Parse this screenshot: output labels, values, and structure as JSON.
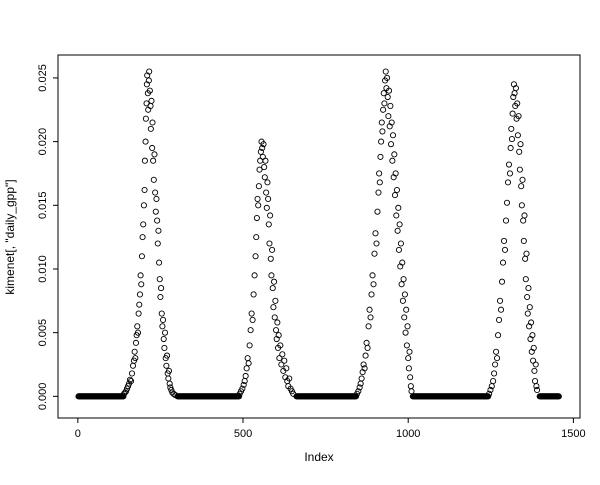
{
  "figure": {
    "background": "#ffffff"
  },
  "chart_data": {
    "type": "scatter",
    "title": "",
    "xlabel": "Index",
    "ylabel": "kimenet[, \"daily_gpp\"]",
    "marker": "open-circle",
    "color": "#000000",
    "grid": false,
    "legend": "none",
    "xlim": [
      0,
      1460
    ],
    "ylim": [
      0,
      0.0255
    ],
    "x_extended": [
      -60,
      1520
    ],
    "y_extended": [
      -0.0017,
      0.0268
    ],
    "x_ticks": [
      0,
      500,
      1000,
      1500
    ],
    "x_tick_labels": [
      "0",
      "500",
      "1000",
      "1500"
    ],
    "y_ticks": [
      0,
      0.005,
      0.01,
      0.015,
      0.02,
      0.025
    ],
    "y_tick_labels": [
      "0.000",
      "0.005",
      "0.010",
      "0.015",
      "0.020",
      "0.025"
    ],
    "zero_value": 0.0,
    "zero_step": 2,
    "zero_segments": [
      [
        2,
        138
      ],
      [
        302,
        488
      ],
      [
        662,
        842
      ],
      [
        1014,
        1242
      ],
      [
        1398,
        1456
      ]
    ],
    "points": [
      [
        140,
        0.0002
      ],
      [
        143,
        0.0003
      ],
      [
        146,
        0.0004
      ],
      [
        149,
        0.0006
      ],
      [
        152,
        0.0008
      ],
      [
        155,
        0.001
      ],
      [
        158,
        0.0013
      ],
      [
        161,
        0.0012
      ],
      [
        164,
        0.0018
      ],
      [
        167,
        0.0024
      ],
      [
        170,
        0.0028
      ],
      [
        172,
        0.0035
      ],
      [
        174,
        0.003
      ],
      [
        176,
        0.0042
      ],
      [
        178,
        0.0048
      ],
      [
        180,
        0.0055
      ],
      [
        182,
        0.005
      ],
      [
        184,
        0.0065
      ],
      [
        186,
        0.0072
      ],
      [
        188,
        0.008
      ],
      [
        190,
        0.0095
      ],
      [
        192,
        0.0088
      ],
      [
        194,
        0.011
      ],
      [
        196,
        0.0125
      ],
      [
        198,
        0.0135
      ],
      [
        200,
        0.015
      ],
      [
        202,
        0.0162
      ],
      [
        203,
        0.0185
      ],
      [
        205,
        0.02
      ],
      [
        206,
        0.0218
      ],
      [
        208,
        0.023
      ],
      [
        209,
        0.0245
      ],
      [
        210,
        0.0252
      ],
      [
        212,
        0.0238
      ],
      [
        213,
        0.0225
      ],
      [
        215,
        0.0248
      ],
      [
        216,
        0.0255
      ],
      [
        218,
        0.024
      ],
      [
        220,
        0.0228
      ],
      [
        221,
        0.021
      ],
      [
        223,
        0.0232
      ],
      [
        225,
        0.0195
      ],
      [
        226,
        0.0215
      ],
      [
        228,
        0.0185
      ],
      [
        230,
        0.017
      ],
      [
        232,
        0.019
      ],
      [
        234,
        0.016
      ],
      [
        236,
        0.0145
      ],
      [
        238,
        0.0155
      ],
      [
        240,
        0.0138
      ],
      [
        242,
        0.012
      ],
      [
        244,
        0.013
      ],
      [
        246,
        0.0105
      ],
      [
        248,
        0.0092
      ],
      [
        250,
        0.0078
      ],
      [
        252,
        0.0085
      ],
      [
        254,
        0.0065
      ],
      [
        256,
        0.0055
      ],
      [
        258,
        0.006
      ],
      [
        260,
        0.0045
      ],
      [
        262,
        0.0038
      ],
      [
        264,
        0.005
      ],
      [
        266,
        0.003
      ],
      [
        268,
        0.0024
      ],
      [
        270,
        0.0032
      ],
      [
        272,
        0.0018
      ],
      [
        274,
        0.0014
      ],
      [
        276,
        0.002
      ],
      [
        278,
        0.001
      ],
      [
        280,
        0.0007
      ],
      [
        283,
        0.0005
      ],
      [
        286,
        0.0003
      ],
      [
        290,
        0.0002
      ],
      [
        295,
        0.0001
      ],
      [
        490,
        0.0002
      ],
      [
        494,
        0.0004
      ],
      [
        498,
        0.0006
      ],
      [
        502,
        0.0009
      ],
      [
        505,
        0.0012
      ],
      [
        508,
        0.0016
      ],
      [
        511,
        0.0022
      ],
      [
        514,
        0.003
      ],
      [
        517,
        0.0026
      ],
      [
        520,
        0.004
      ],
      [
        523,
        0.0052
      ],
      [
        526,
        0.0065
      ],
      [
        529,
        0.006
      ],
      [
        532,
        0.008
      ],
      [
        535,
        0.0095
      ],
      [
        538,
        0.011
      ],
      [
        540,
        0.0125
      ],
      [
        542,
        0.014
      ],
      [
        544,
        0.0155
      ],
      [
        546,
        0.015
      ],
      [
        548,
        0.0165
      ],
      [
        550,
        0.0178
      ],
      [
        552,
        0.0185
      ],
      [
        554,
        0.0192
      ],
      [
        556,
        0.02
      ],
      [
        558,
        0.0195
      ],
      [
        560,
        0.0188
      ],
      [
        562,
        0.0198
      ],
      [
        564,
        0.018
      ],
      [
        566,
        0.0172
      ],
      [
        568,
        0.0185
      ],
      [
        570,
        0.016
      ],
      [
        572,
        0.0148
      ],
      [
        574,
        0.0168
      ],
      [
        576,
        0.0155
      ],
      [
        578,
        0.0135
      ],
      [
        580,
        0.012
      ],
      [
        582,
        0.0142
      ],
      [
        584,
        0.0108
      ],
      [
        586,
        0.0095
      ],
      [
        588,
        0.0115
      ],
      [
        590,
        0.0085
      ],
      [
        592,
        0.007
      ],
      [
        594,
        0.009
      ],
      [
        596,
        0.0062
      ],
      [
        598,
        0.0075
      ],
      [
        600,
        0.0052
      ],
      [
        602,
        0.0045
      ],
      [
        604,
        0.0058
      ],
      [
        606,
        0.0038
      ],
      [
        608,
        0.0048
      ],
      [
        610,
        0.003
      ],
      [
        613,
        0.004
      ],
      [
        616,
        0.0025
      ],
      [
        619,
        0.0033
      ],
      [
        622,
        0.002
      ],
      [
        625,
        0.0028
      ],
      [
        628,
        0.0015
      ],
      [
        631,
        0.0022
      ],
      [
        634,
        0.0012
      ],
      [
        637,
        0.0008
      ],
      [
        640,
        0.0014
      ],
      [
        644,
        0.0006
      ],
      [
        648,
        0.0004
      ],
      [
        652,
        0.0002
      ],
      [
        845,
        0.0002
      ],
      [
        849,
        0.0004
      ],
      [
        853,
        0.0007
      ],
      [
        856,
        0.001
      ],
      [
        859,
        0.0014
      ],
      [
        862,
        0.0019
      ],
      [
        865,
        0.0025
      ],
      [
        868,
        0.0022
      ],
      [
        871,
        0.0032
      ],
      [
        874,
        0.0042
      ],
      [
        877,
        0.0038
      ],
      [
        880,
        0.0055
      ],
      [
        883,
        0.0068
      ],
      [
        886,
        0.0062
      ],
      [
        889,
        0.008
      ],
      [
        892,
        0.0095
      ],
      [
        895,
        0.0088
      ],
      [
        898,
        0.0112
      ],
      [
        901,
        0.0128
      ],
      [
        904,
        0.012
      ],
      [
        907,
        0.0145
      ],
      [
        910,
        0.016
      ],
      [
        912,
        0.0175
      ],
      [
        914,
        0.0168
      ],
      [
        916,
        0.0188
      ],
      [
        918,
        0.02
      ],
      [
        920,
        0.0215
      ],
      [
        922,
        0.0208
      ],
      [
        924,
        0.0225
      ],
      [
        926,
        0.0238
      ],
      [
        928,
        0.023
      ],
      [
        930,
        0.0248
      ],
      [
        932,
        0.0255
      ],
      [
        934,
        0.0242
      ],
      [
        936,
        0.025
      ],
      [
        938,
        0.0235
      ],
      [
        940,
        0.022
      ],
      [
        942,
        0.024
      ],
      [
        944,
        0.0212
      ],
      [
        946,
        0.0228
      ],
      [
        948,
        0.0198
      ],
      [
        950,
        0.0215
      ],
      [
        952,
        0.0185
      ],
      [
        954,
        0.0205
      ],
      [
        956,
        0.0172
      ],
      [
        958,
        0.019
      ],
      [
        960,
        0.0158
      ],
      [
        962,
        0.0175
      ],
      [
        964,
        0.0142
      ],
      [
        966,
        0.0162
      ],
      [
        968,
        0.013
      ],
      [
        970,
        0.0148
      ],
      [
        972,
        0.0115
      ],
      [
        974,
        0.0135
      ],
      [
        976,
        0.0102
      ],
      [
        978,
        0.012
      ],
      [
        980,
        0.0088
      ],
      [
        982,
        0.0105
      ],
      [
        984,
        0.0075
      ],
      [
        986,
        0.0092
      ],
      [
        988,
        0.0062
      ],
      [
        990,
        0.008
      ],
      [
        992,
        0.005
      ],
      [
        994,
        0.0068
      ],
      [
        996,
        0.004
      ],
      [
        998,
        0.0055
      ],
      [
        1000,
        0.003
      ],
      [
        1002,
        0.0022
      ],
      [
        1004,
        0.0035
      ],
      [
        1006,
        0.0015
      ],
      [
        1008,
        0.0008
      ],
      [
        1010,
        0.0004
      ],
      [
        1245,
        0.0002
      ],
      [
        1249,
        0.0005
      ],
      [
        1253,
        0.0008
      ],
      [
        1257,
        0.0012
      ],
      [
        1260,
        0.0018
      ],
      [
        1263,
        0.0025
      ],
      [
        1266,
        0.0035
      ],
      [
        1269,
        0.003
      ],
      [
        1272,
        0.0048
      ],
      [
        1275,
        0.006
      ],
      [
        1278,
        0.0075
      ],
      [
        1281,
        0.0068
      ],
      [
        1284,
        0.009
      ],
      [
        1287,
        0.0105
      ],
      [
        1290,
        0.0122
      ],
      [
        1293,
        0.0115
      ],
      [
        1296,
        0.0138
      ],
      [
        1299,
        0.0152
      ],
      [
        1302,
        0.0168
      ],
      [
        1305,
        0.0182
      ],
      [
        1308,
        0.0175
      ],
      [
        1310,
        0.0195
      ],
      [
        1312,
        0.021
      ],
      [
        1314,
        0.0202
      ],
      [
        1316,
        0.0222
      ],
      [
        1318,
        0.0235
      ],
      [
        1320,
        0.0245
      ],
      [
        1322,
        0.0238
      ],
      [
        1324,
        0.0228
      ],
      [
        1326,
        0.0242
      ],
      [
        1328,
        0.0218
      ],
      [
        1330,
        0.023
      ],
      [
        1332,
        0.0205
      ],
      [
        1334,
        0.022
      ],
      [
        1336,
        0.0192
      ],
      [
        1338,
        0.0178
      ],
      [
        1340,
        0.0198
      ],
      [
        1342,
        0.0165
      ],
      [
        1344,
        0.015
      ],
      [
        1346,
        0.017
      ],
      [
        1348,
        0.0138
      ],
      [
        1350,
        0.0122
      ],
      [
        1352,
        0.0142
      ],
      [
        1354,
        0.0108
      ],
      [
        1356,
        0.0092
      ],
      [
        1358,
        0.0112
      ],
      [
        1360,
        0.0078
      ],
      [
        1362,
        0.0065
      ],
      [
        1364,
        0.0085
      ],
      [
        1366,
        0.0055
      ],
      [
        1368,
        0.007
      ],
      [
        1370,
        0.0045
      ],
      [
        1372,
        0.0058
      ],
      [
        1374,
        0.0035
      ],
      [
        1376,
        0.0048
      ],
      [
        1378,
        0.0028
      ],
      [
        1380,
        0.0038
      ],
      [
        1382,
        0.002
      ],
      [
        1384,
        0.0012
      ],
      [
        1386,
        0.0025
      ],
      [
        1388,
        0.0008
      ],
      [
        1390,
        0.0005
      ]
    ]
  }
}
